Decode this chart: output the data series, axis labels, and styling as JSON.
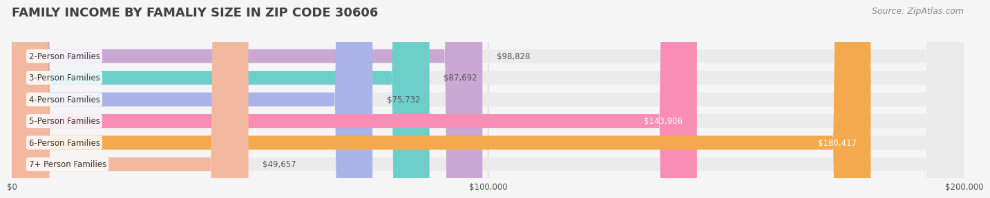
{
  "title": "FAMILY INCOME BY FAMALIY SIZE IN ZIP CODE 30606",
  "source": "Source: ZipAtlas.com",
  "categories": [
    "2-Person Families",
    "3-Person Families",
    "4-Person Families",
    "5-Person Families",
    "6-Person Families",
    "7+ Person Families"
  ],
  "values": [
    98828,
    87692,
    75732,
    143906,
    180417,
    49657
  ],
  "bar_colors": [
    "#c9a8d4",
    "#6ecfca",
    "#aab4e8",
    "#f88eb4",
    "#f5a94e",
    "#f2b8a0"
  ],
  "label_colors": [
    "#555555",
    "#555555",
    "#555555",
    "#ffffff",
    "#ffffff",
    "#555555"
  ],
  "xlim": [
    0,
    200000
  ],
  "xticks": [
    0,
    100000,
    200000
  ],
  "xtick_labels": [
    "$0",
    "$100,000",
    "$200,000"
  ],
  "background_color": "#f5f5f5",
  "bar_bg_color": "#ebebeb",
  "title_color": "#404040",
  "title_fontsize": 13,
  "source_fontsize": 9,
  "bar_height": 0.62,
  "value_labels": [
    "$98,828",
    "$87,692",
    "$75,732",
    "$143,906",
    "$180,417",
    "$49,657"
  ]
}
